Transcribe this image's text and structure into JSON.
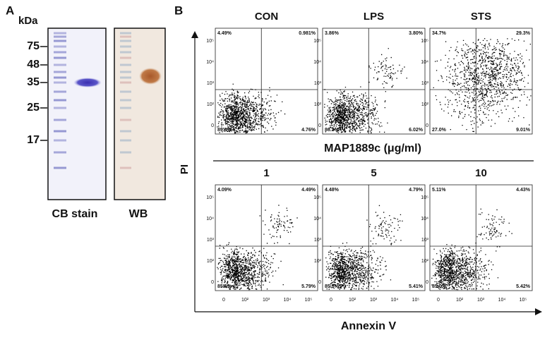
{
  "panel_a": {
    "label": "A",
    "unit": "kDa",
    "markers": [
      "75",
      "48",
      "35",
      "25",
      "17"
    ],
    "lanes": [
      "CB stain",
      "WB"
    ]
  },
  "panel_b": {
    "label": "B",
    "y_axis_label": "PI",
    "x_axis_label": "Annexin V",
    "group_label": "MAP1889c (μg/ml)",
    "y_ticks": [
      "10⁵",
      "10⁴",
      "10³",
      "10²",
      "0"
    ],
    "x_ticks": [
      "0",
      "10²",
      "10³",
      "10⁴",
      "10⁵"
    ],
    "plots": [
      {
        "title": "CON",
        "upper_left": "4.49%",
        "upper_right": "0.981%",
        "lower_left": "89.8%",
        "lower_right": "4.76%"
      },
      {
        "title": "LPS",
        "upper_left": "3.86%",
        "upper_right": "3.80%",
        "lower_left": "86.3%",
        "lower_right": "6.02%"
      },
      {
        "title": "STS",
        "upper_left": "34.7%",
        "upper_right": "29.3%",
        "lower_left": "27.0%",
        "lower_right": "9.01%"
      },
      {
        "title": "1",
        "upper_left": "4.09%",
        "upper_right": "4.49%",
        "lower_left": "85.6%",
        "lower_right": "5.79%"
      },
      {
        "title": "5",
        "upper_left": "4.48%",
        "upper_right": "4.79%",
        "lower_left": "85.3%",
        "lower_right": "5.41%"
      },
      {
        "title": "10",
        "upper_left": "5.11%",
        "upper_right": "4.43%",
        "lower_left": "85.0%",
        "lower_right": "5.42%"
      }
    ]
  }
}
